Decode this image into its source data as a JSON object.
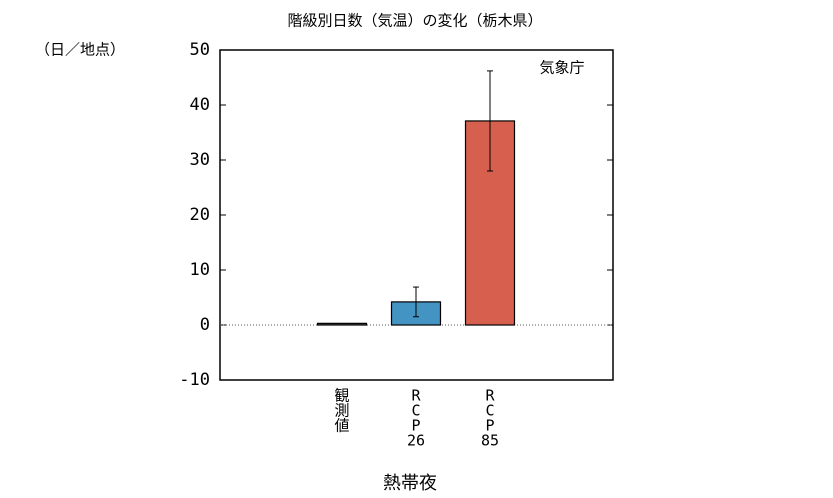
{
  "chart_data": {
    "type": "bar",
    "title": "階級別日数（気温）の変化（栃木県）",
    "y_unit": "（日／地点）",
    "source": "気象庁",
    "x_label": "熱帯夜",
    "categories": [
      [
        "観",
        "測",
        "値"
      ],
      [
        "R",
        "C",
        "P",
        "26"
      ],
      [
        "R",
        "C",
        "P",
        "85"
      ]
    ],
    "values": [
      0.3,
      4.2,
      37.1
    ],
    "error_low": [
      null,
      1.5,
      28.0
    ],
    "error_high": [
      null,
      6.9,
      46.2
    ],
    "colors": [
      "#555555",
      "#4393c3",
      "#d6604d"
    ],
    "ylim": [
      -10,
      50
    ],
    "yticks": [
      -10,
      0,
      10,
      20,
      30,
      40,
      50
    ]
  }
}
